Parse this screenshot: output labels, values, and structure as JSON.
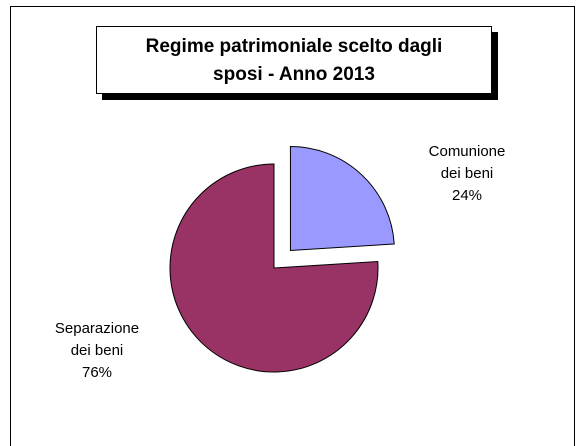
{
  "chart_data": {
    "type": "pie",
    "title_lines": [
      "Regime patrimoniale scelto dagli",
      "sposi - Anno 2013"
    ],
    "slices": [
      {
        "label_lines": [
          "Comunione",
          "dei beni"
        ],
        "value": 24,
        "value_label": "24%",
        "color": "#9999FF",
        "exploded": true
      },
      {
        "label_lines": [
          "Separazione",
          "dei beni"
        ],
        "value": 76,
        "value_label": "76%",
        "color": "#993366",
        "exploded": false
      }
    ],
    "legend": "none"
  }
}
